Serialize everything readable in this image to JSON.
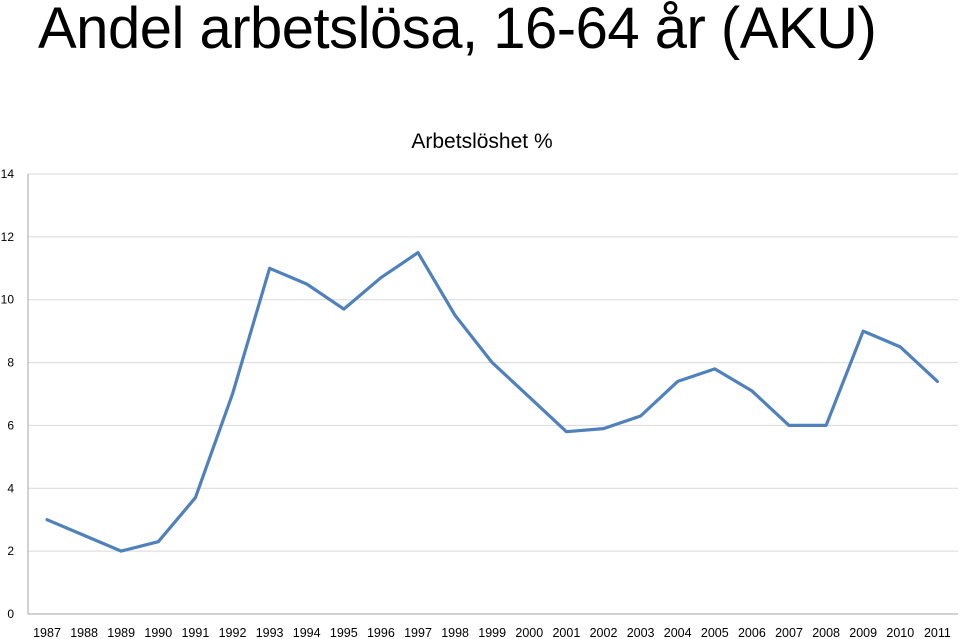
{
  "slide": {
    "title": "Andel arbetslösa, 16-64 år (AKU)"
  },
  "chart_data": {
    "type": "line",
    "title": "Arbetslöshet %",
    "xlabel": "",
    "ylabel": "",
    "ylim": [
      0,
      14
    ],
    "yticks": [
      0,
      2,
      4,
      6,
      8,
      10,
      12,
      14
    ],
    "grid": true,
    "legend": "none",
    "line_color": "#4F81BD",
    "grid_color": "#D9D9D9",
    "categories": [
      "1987",
      "1988",
      "1989",
      "1990",
      "1991",
      "1992",
      "1993",
      "1994",
      "1995",
      "1996",
      "1997",
      "1998",
      "1999",
      "2000",
      "2001",
      "2002",
      "2003",
      "2004",
      "2005",
      "2006",
      "2007",
      "2008",
      "2009",
      "2010",
      "2011"
    ],
    "series": [
      {
        "values": [
          3.0,
          2.5,
          2.0,
          2.3,
          3.7,
          7.0,
          11.0,
          10.5,
          9.7,
          10.7,
          11.5,
          9.5,
          8.0,
          6.9,
          5.8,
          5.9,
          6.3,
          7.4,
          7.8,
          7.1,
          6.0,
          6.0,
          9.0,
          8.5,
          7.4
        ]
      }
    ]
  }
}
